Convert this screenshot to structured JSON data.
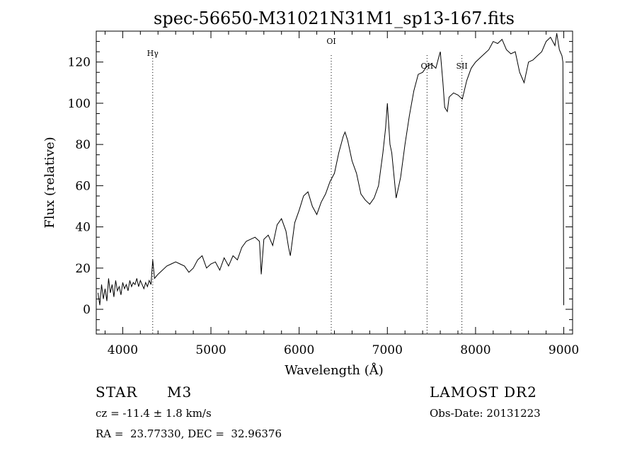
{
  "chart_data": {
    "type": "line",
    "title": "spec-56650-M31021N31M1_sp13-167.fits",
    "xlabel": "Wavelength (Å)",
    "ylabel": "Flux (relative)",
    "xlim": [
      3700,
      9100
    ],
    "ylim": [
      -12,
      135
    ],
    "x_ticks": [
      4000,
      5000,
      6000,
      7000,
      8000,
      9000
    ],
    "y_ticks": [
      0,
      20,
      40,
      60,
      80,
      100,
      120
    ],
    "grid": false,
    "line_color": "#000000",
    "lines": [
      {
        "label": "Hγ",
        "x": 4340
      },
      {
        "label": "OI",
        "x": 6364
      },
      {
        "label": "OII",
        "x": 7450
      },
      {
        "label": "SII",
        "x": 7845
      }
    ],
    "series": [
      {
        "x": [
          3720,
          3740,
          3760,
          3780,
          3800,
          3820,
          3840,
          3860,
          3880,
          3900,
          3920,
          3940,
          3960,
          3980,
          4000,
          4020,
          4040,
          4060,
          4080,
          4100,
          4120,
          4140,
          4160,
          4180,
          4200,
          4220,
          4240,
          4260,
          4280,
          4300,
          4320,
          4340,
          4360,
          4380,
          4400,
          4450,
          4500,
          4550,
          4600,
          4650,
          4700,
          4750,
          4800,
          4850,
          4900,
          4950,
          5000,
          5050,
          5100,
          5150,
          5200,
          5250,
          5300,
          5350,
          5400,
          5450,
          5500,
          5550,
          5570,
          5600,
          5650,
          5700,
          5750,
          5800,
          5850,
          5880,
          5900,
          5950,
          6000,
          6050,
          6100,
          6150,
          6200,
          6250,
          6300,
          6350,
          6400,
          6450,
          6500,
          6520,
          6550,
          6600,
          6650,
          6700,
          6750,
          6800,
          6850,
          6900,
          6950,
          6980,
          7000,
          7030,
          7050,
          7100,
          7130,
          7150,
          7200,
          7250,
          7300,
          7350,
          7400,
          7450,
          7500,
          7550,
          7580,
          7600,
          7630,
          7650,
          7680,
          7700,
          7750,
          7800,
          7850,
          7900,
          7950,
          8000,
          8050,
          8100,
          8150,
          8200,
          8250,
          8300,
          8350,
          8400,
          8450,
          8500,
          8530,
          8550,
          8600,
          8650,
          8700,
          8750,
          8800,
          8850,
          8900,
          8920,
          8950,
          8980,
          8990,
          9000
        ],
        "y": [
          8,
          2,
          12,
          5,
          10,
          4,
          15,
          8,
          12,
          6,
          14,
          9,
          11,
          7,
          13,
          10,
          12,
          9,
          14,
          11,
          13,
          12,
          15,
          11,
          14,
          12,
          10,
          13,
          11,
          14,
          12,
          24,
          15,
          16,
          17,
          19,
          21,
          22,
          23,
          22,
          21,
          18,
          20,
          24,
          26,
          20,
          22,
          23,
          19,
          25,
          21,
          26,
          24,
          30,
          33,
          34,
          35,
          33,
          17,
          34,
          36,
          31,
          41,
          44,
          38,
          30,
          26,
          42,
          48,
          55,
          57,
          50,
          46,
          52,
          56,
          62,
          66,
          76,
          84,
          86,
          82,
          72,
          66,
          56,
          53,
          51,
          54,
          60,
          76,
          88,
          100,
          80,
          76,
          54,
          60,
          64,
          80,
          94,
          106,
          114,
          115,
          118,
          119,
          117,
          122,
          125,
          110,
          98,
          96,
          103,
          105,
          104,
          102,
          111,
          117,
          120,
          122,
          124,
          126,
          130,
          129,
          131,
          126,
          124,
          125,
          115,
          112,
          110,
          120,
          121,
          123,
          125,
          130,
          132,
          128,
          134,
          126,
          123,
          120,
          2
        ]
      }
    ]
  },
  "info": {
    "class_label": "STAR",
    "subclass_label": "M3",
    "survey": "LAMOST DR2",
    "cz": "cz = -11.4 ± 1.8 km/s",
    "obs_date": "Obs-Date: 20131223",
    "coords": "RA =  23.77330, DEC =  32.96376"
  }
}
